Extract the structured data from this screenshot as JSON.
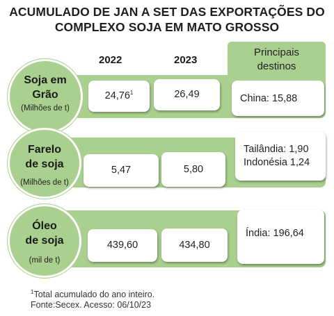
{
  "title": {
    "line1": "ACUMULADO DE JAN A SET DAS EXPORTAÇÕES DO",
    "line2": "COMPLEXO SOJA EM MATO GROSSO"
  },
  "columns": {
    "year1": "2022",
    "year2": "2023",
    "destinations_line1": "Principais",
    "destinations_line2": "destinos"
  },
  "rows": [
    {
      "name_line1": "Soja em",
      "name_line2": "Grão",
      "unit": "(Milhões de t)",
      "v2022": "24,76",
      "v2022_note": "1",
      "v2023": "26,49",
      "destinations": [
        "China: 15,88"
      ]
    },
    {
      "name_line1": "Farelo",
      "name_line2": "de soja",
      "unit": "(Milhões de t)",
      "v2022": "5,47",
      "v2023": "5,80",
      "destinations": [
        "Tailândia: 1,90",
        "Indonésia 1,24"
      ]
    },
    {
      "name_line1": "Óleo",
      "name_line2": "de soja",
      "unit": "(mil de t)",
      "v2022": "439,60",
      "v2023": "434,80",
      "destinations": [
        "Índia: 196,64"
      ]
    }
  ],
  "footer": {
    "note_marker": "1",
    "note_text": "Total acumulado do ano inteiro.",
    "source": "Fonte:Secex. Acesso: 06/10/23"
  },
  "colors": {
    "green": "#a9d08e",
    "box": "#ffffff"
  }
}
